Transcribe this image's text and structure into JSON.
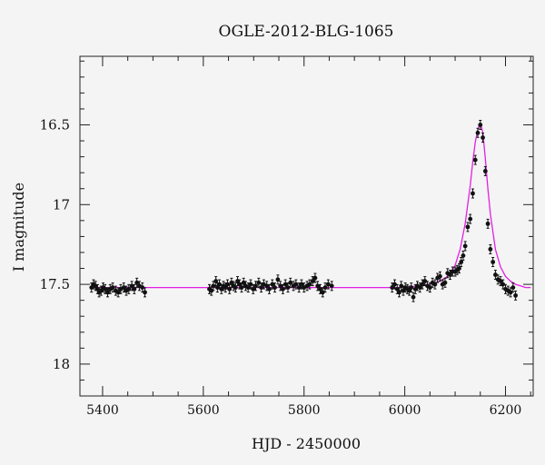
{
  "chart_data": {
    "type": "scatter",
    "title": "OGLE-2012-BLG-1065",
    "xlabel": "HJD - 2450000",
    "ylabel": "I magnitude",
    "xlim": [
      5355,
      6255
    ],
    "ylim": [
      18.2,
      16.07
    ],
    "y_inverted": true,
    "x_ticks": [
      5400,
      5600,
      5800,
      6000,
      6200
    ],
    "x_tick_labels": [
      "5400",
      "5600",
      "5800",
      "6000",
      "6200"
    ],
    "y_ticks": [
      16.5,
      17,
      17.5,
      18
    ],
    "y_tick_labels": [
      "16.5",
      "17",
      "17.5",
      "18"
    ],
    "grid": false,
    "colors": {
      "data": "#111111",
      "model": "#e41ee4"
    },
    "model": {
      "t0": 6150,
      "tE": 20,
      "u0": 0.12,
      "baseline": 17.52,
      "peak_mag": 16.5
    },
    "series": [
      {
        "type": "scatter",
        "x": [
          5378,
          5382,
          5386,
          5390,
          5393,
          5397,
          5401,
          5405,
          5410,
          5415,
          5420,
          5426,
          5431,
          5436,
          5442,
          5447,
          5452,
          5458,
          5463,
          5468,
          5473,
          5479,
          5484,
          5612,
          5616,
          5620,
          5625,
          5628,
          5632,
          5636,
          5640,
          5644,
          5648,
          5652,
          5656,
          5660,
          5664,
          5668,
          5672,
          5676,
          5680,
          5684,
          5689,
          5694,
          5699,
          5704,
          5710,
          5715,
          5720,
          5726,
          5731,
          5737,
          5742,
          5748,
          5753,
          5758,
          5763,
          5768,
          5773,
          5779,
          5784,
          5790,
          5795,
          5800,
          5806,
          5811,
          5817,
          5822,
          5827,
          5832,
          5837,
          5842,
          5848,
          5855,
          5975,
          5980,
          5985,
          5989,
          5993,
          5997,
          6001,
          6005,
          6009,
          6013,
          6017,
          6021,
          6025,
          6030,
          6035,
          6040,
          6045,
          6050,
          6055,
          6060,
          6065,
          6070,
          6075,
          6080,
          6085,
          6090,
          6095,
          6100,
          6104,
          6108,
          6112,
          6116,
          6120,
          6125,
          6130,
          6135,
          6140,
          6145,
          6150,
          6155,
          6160,
          6165,
          6170,
          6175,
          6180,
          6185,
          6190,
          6195,
          6200,
          6205,
          6210,
          6215,
          6220
        ],
        "y": [
          17.52,
          17.5,
          17.51,
          17.53,
          17.55,
          17.54,
          17.52,
          17.53,
          17.55,
          17.53,
          17.52,
          17.54,
          17.55,
          17.53,
          17.52,
          17.54,
          17.53,
          17.51,
          17.53,
          17.49,
          17.51,
          17.52,
          17.55,
          17.53,
          17.54,
          17.51,
          17.48,
          17.52,
          17.5,
          17.53,
          17.51,
          17.52,
          17.5,
          17.53,
          17.49,
          17.51,
          17.52,
          17.48,
          17.5,
          17.52,
          17.49,
          17.51,
          17.52,
          17.5,
          17.53,
          17.51,
          17.49,
          17.52,
          17.5,
          17.51,
          17.53,
          17.5,
          17.52,
          17.47,
          17.51,
          17.53,
          17.5,
          17.52,
          17.49,
          17.51,
          17.5,
          17.52,
          17.5,
          17.52,
          17.51,
          17.5,
          17.48,
          17.46,
          17.51,
          17.53,
          17.55,
          17.52,
          17.5,
          17.51,
          17.52,
          17.5,
          17.53,
          17.55,
          17.51,
          17.54,
          17.52,
          17.53,
          17.54,
          17.52,
          17.58,
          17.53,
          17.51,
          17.52,
          17.5,
          17.48,
          17.51,
          17.52,
          17.49,
          17.5,
          17.46,
          17.45,
          17.5,
          17.49,
          17.43,
          17.44,
          17.42,
          17.42,
          17.41,
          17.4,
          17.36,
          17.32,
          17.26,
          17.14,
          17.09,
          16.93,
          16.72,
          16.55,
          16.5,
          16.58,
          16.79,
          17.12,
          17.28,
          17.36,
          17.44,
          17.47,
          17.48,
          17.5,
          17.53,
          17.54,
          17.55,
          17.52,
          17.57
        ]
      },
      {
        "type": "line",
        "x": [
          5375,
          5500,
          5600,
          5700,
          5800,
          5900,
          6000,
          6050,
          6070,
          6090,
          6100,
          6110,
          6120,
          6130,
          6135,
          6140,
          6145,
          6148,
          6150,
          6152,
          6155,
          6160,
          6165,
          6170,
          6180,
          6190,
          6200,
          6210,
          6220,
          6230,
          6240,
          6250
        ],
        "y": [
          17.52,
          17.52,
          17.52,
          17.52,
          17.52,
          17.52,
          17.52,
          17.5,
          17.48,
          17.44,
          17.38,
          17.28,
          17.12,
          16.88,
          16.73,
          16.61,
          16.53,
          16.5,
          16.5,
          16.51,
          16.55,
          16.71,
          16.9,
          17.06,
          17.28,
          17.39,
          17.45,
          17.48,
          17.5,
          17.51,
          17.52,
          17.52
        ]
      }
    ]
  }
}
